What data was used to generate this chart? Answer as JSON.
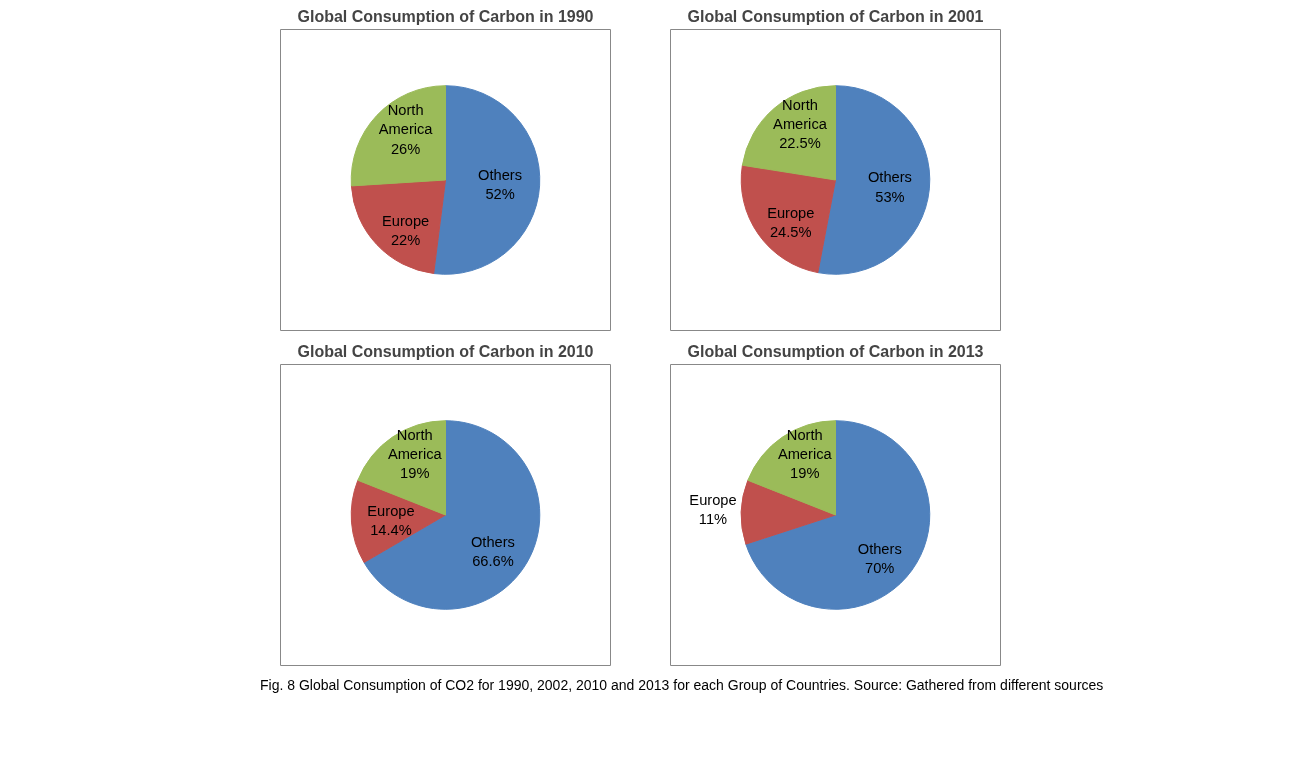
{
  "chart_data": [
    {
      "type": "pie",
      "title": "Global Consumption of Carbon in 1990",
      "categories": [
        "Others",
        "Europe",
        "North America"
      ],
      "values": [
        52,
        22,
        26
      ],
      "value_labels": [
        "52%",
        "22%",
        "26%"
      ],
      "colors": [
        "#4f81bd",
        "#c0504d",
        "#9bbb59"
      ],
      "legend": false
    },
    {
      "type": "pie",
      "title": "Global Consumption of Carbon in 2001",
      "categories": [
        "Others",
        "Europe",
        "North America"
      ],
      "values": [
        53,
        24.5,
        22.5
      ],
      "value_labels": [
        "53%",
        "24.5%",
        "22.5%"
      ],
      "colors": [
        "#4f81bd",
        "#c0504d",
        "#9bbb59"
      ],
      "legend": false
    },
    {
      "type": "pie",
      "title": "Global Consumption of Carbon in 2010",
      "categories": [
        "Others",
        "Europe",
        "North America"
      ],
      "values": [
        66.6,
        14.4,
        19
      ],
      "value_labels": [
        "66.6%",
        "14.4%",
        "19%"
      ],
      "colors": [
        "#4f81bd",
        "#c0504d",
        "#9bbb59"
      ],
      "legend": false
    },
    {
      "type": "pie",
      "title": "Global Consumption of Carbon in 2013",
      "categories": [
        "Others",
        "Europe",
        "North America"
      ],
      "values": [
        70,
        11,
        19
      ],
      "value_labels": [
        "70%",
        "11%",
        "19%"
      ],
      "colors": [
        "#4f81bd",
        "#c0504d",
        "#9bbb59"
      ],
      "legend": false,
      "annotations": [
        "Fig. 8 Global Consumption of CO2 for 1990, 2002, 2010 and 2013 for each Group of Countries. Source: Gathered from different sources"
      ]
    }
  ]
}
